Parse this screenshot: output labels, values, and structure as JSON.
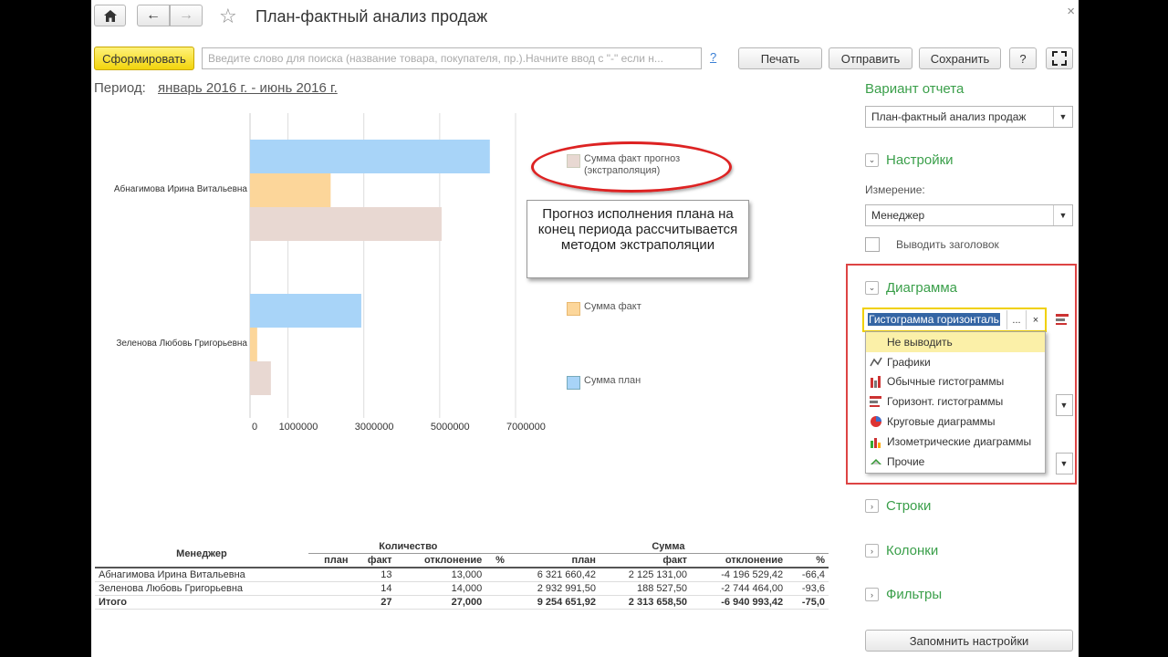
{
  "window": {
    "title": "План-фактный анализ продаж",
    "close": "×"
  },
  "toolbar": {
    "generate": "Сформировать",
    "search_placeholder": "Введите слово для поиска (название товара, покупателя, пр.).Начните ввод с \"-\" если н...",
    "help_link": "?",
    "print": "Печать",
    "send": "Отправить",
    "save": "Сохранить",
    "help": "?"
  },
  "period": {
    "label": "Период:",
    "value": "январь 2016 г. - июнь 2016 г."
  },
  "chart_data": {
    "type": "bar",
    "orientation": "horizontal",
    "categories": [
      "Абнагимова Ирина Витальевна",
      "Зеленова Любовь Григорьевна"
    ],
    "series": [
      {
        "name": "Сумма план",
        "color": "#a8d4f8",
        "values": [
          6321660.42,
          2932991.5
        ]
      },
      {
        "name": "Сумма факт",
        "color": "#fcd69a",
        "values": [
          2125131.0,
          188527.5
        ]
      },
      {
        "name": "Сумма факт прогноз (экстраполяция)",
        "color": "#e8d8d2",
        "values": [
          5050000,
          550000
        ]
      }
    ],
    "xticks": [
      "0",
      "1000000",
      "3000000",
      "5000000",
      "7000000"
    ],
    "xtick_values": [
      0,
      1000000,
      3000000,
      5000000,
      7000000
    ],
    "xlim": [
      0,
      7000000
    ],
    "legend_placement": "right"
  },
  "legend": {
    "forecast": "Сумма факт прогноз (экстраполяция)",
    "fact": "Сумма факт",
    "plan": "Сумма план"
  },
  "callout": {
    "text": "Прогноз исполнения плана на конец периода рассчитывается методом экстраполяции"
  },
  "table": {
    "manager": "Менеджер",
    "qty_group": "Количество",
    "sum_group": "Сумма",
    "cols": [
      "план",
      "факт",
      "отклонение",
      "%",
      "план",
      "факт",
      "отклонение",
      "%"
    ],
    "rows": [
      {
        "name": "Абнагимова Ирина Витальевна",
        "q_plan": "",
        "q_fact": "13",
        "q_dev": "13,000",
        "q_pct": "",
        "s_plan": "6 321 660,42",
        "s_fact": "2 125 131,00",
        "s_dev": "-4 196 529,42",
        "s_pct": "-66,4"
      },
      {
        "name": "Зеленова Любовь Григорьевна",
        "q_plan": "",
        "q_fact": "14",
        "q_dev": "14,000",
        "q_pct": "",
        "s_plan": "2 932 991,50",
        "s_fact": "188 527,50",
        "s_dev": "-2 744 464,00",
        "s_pct": "-93,6"
      }
    ],
    "total": {
      "name": "Итого",
      "q_plan": "",
      "q_fact": "27",
      "q_dev": "27,000",
      "q_pct": "",
      "s_plan": "9 254 651,92",
      "s_fact": "2 313 658,50",
      "s_dev": "-6 940 993,42",
      "s_pct": "-75,0"
    }
  },
  "sidebar": {
    "variant_title": "Вариант отчета",
    "variant_value": "План-фактный анализ продаж",
    "settings": "Настройки",
    "dimension_label": "Измерение:",
    "dimension_value": "Менеджер",
    "show_header": "Выводить заголовок",
    "diagram": "Диаграмма",
    "diagram_value": "Гистограмма горизонталь",
    "dots": "...",
    "clear": "×",
    "menu": [
      "Не выводить",
      "Графики",
      "Обычные гистограммы",
      "Горизонт. гистограммы",
      "Круговые диаграммы",
      "Изометрические диаграммы",
      "Прочие"
    ],
    "rows": "Строки",
    "columns": "Колонки",
    "filters": "Фильтры",
    "remember": "Запомнить настройки"
  }
}
